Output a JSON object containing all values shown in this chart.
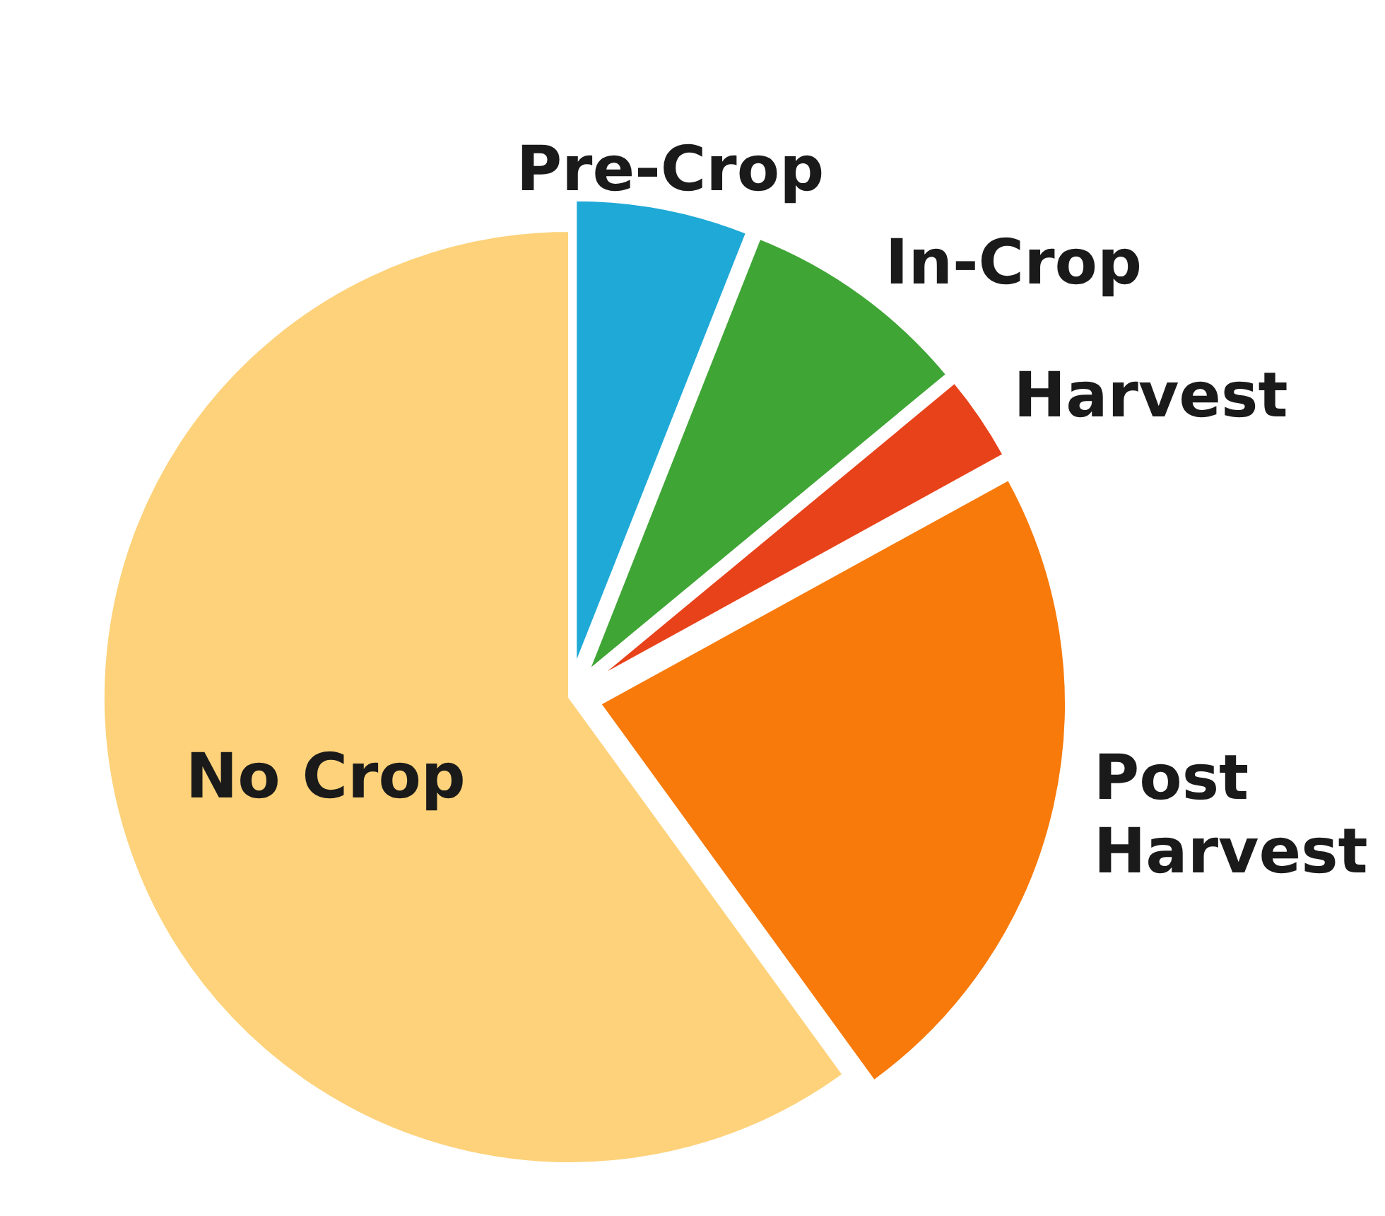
{
  "chart_data": {
    "type": "pie",
    "categories": [
      "Pre-Crop",
      "In-Crop",
      "Harvest",
      "Post Harvest",
      "No Crop"
    ],
    "values": [
      6,
      8,
      3,
      23,
      60
    ],
    "colors": [
      "#1fa9d6",
      "#3fa535",
      "#e8421a",
      "#f77a0a",
      "#fdd27a"
    ]
  }
}
